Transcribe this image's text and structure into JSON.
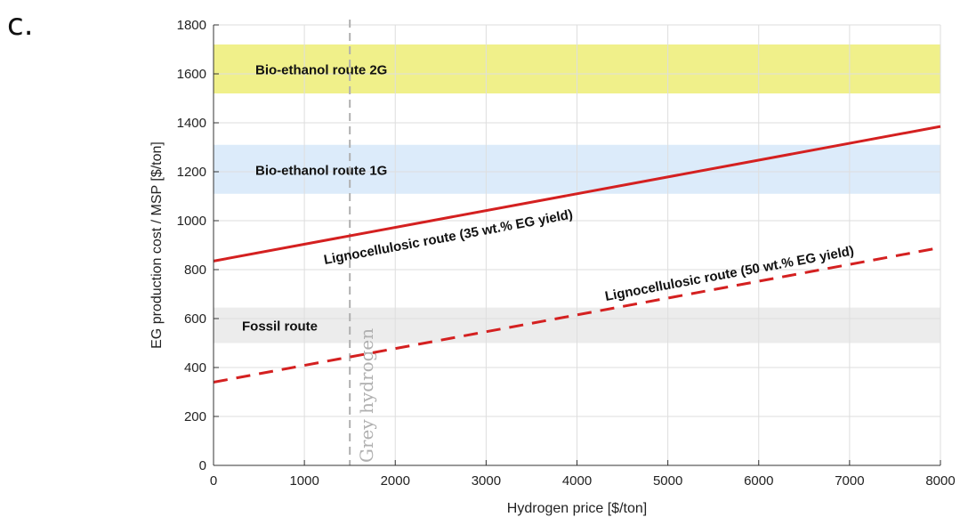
{
  "panel_label": "c.",
  "chart_data": {
    "type": "line",
    "xlabel": "Hydrogen price [$/ton]",
    "ylabel": "EG production cost / MSP [$/ton]",
    "xlim": [
      0,
      8000
    ],
    "ylim": [
      0,
      1800
    ],
    "x_ticks": [
      0,
      1000,
      2000,
      3000,
      4000,
      5000,
      6000,
      7000,
      8000
    ],
    "y_ticks": [
      0,
      200,
      400,
      600,
      800,
      1000,
      1200,
      1400,
      1600,
      1800
    ],
    "grid": true,
    "bands": [
      {
        "label": "Bio-ethanol route 2G",
        "ymin": 1520,
        "ymax": 1720,
        "color": "#f0f08a"
      },
      {
        "label": "Bio-ethanol route 1G",
        "ymin": 1110,
        "ymax": 1310,
        "color": "#dcebfa"
      },
      {
        "label": "Fossil route",
        "ymin": 500,
        "ymax": 645,
        "color": "#ececec"
      }
    ],
    "series": [
      {
        "name": "Lignocellulosic route (35 wt.% EG yield)",
        "x": [
          0,
          8000
        ],
        "y": [
          835,
          1385
        ],
        "color": "#d42020",
        "style": "solid"
      },
      {
        "name": "Lignocellulosic route (50 wt.% EG yield)",
        "x": [
          0,
          8000
        ],
        "y": [
          340,
          890
        ],
        "color": "#d42020",
        "style": "dashed"
      }
    ],
    "annotations": [
      {
        "text": "Grey hydrogen",
        "x": 1500,
        "color": "#b0b0b0",
        "style": "dashed-vertical"
      }
    ]
  }
}
